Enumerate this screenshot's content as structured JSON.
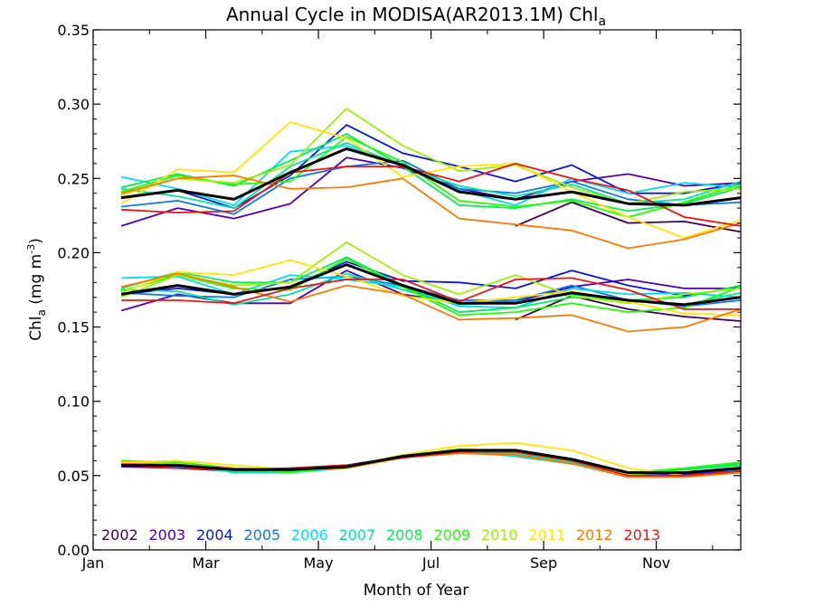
{
  "chart_data": {
    "type": "line",
    "title": "Annual Cycle in MODISA(AR2013.1M) Chl",
    "title_subscript": "a",
    "xlabel": "Month of Year",
    "ylabel_main": "Chl",
    "ylabel_sub": "a",
    "ylabel_units": " (mg m",
    "ylabel_exp": "-3",
    "ylabel_close": ")",
    "xlim": [
      1,
      12.5
    ],
    "ylim": [
      0,
      0.35
    ],
    "x_ticks": [
      {
        "value": 1,
        "label": "Jan"
      },
      {
        "value": 3,
        "label": "Mar"
      },
      {
        "value": 5,
        "label": "May"
      },
      {
        "value": 7,
        "label": "Jul"
      },
      {
        "value": 9,
        "label": "Sep"
      },
      {
        "value": 11,
        "label": "Nov"
      }
    ],
    "y_ticks": [
      {
        "value": 0.0,
        "label": "0.00"
      },
      {
        "value": 0.05,
        "label": "0.05"
      },
      {
        "value": 0.1,
        "label": "0.10"
      },
      {
        "value": 0.15,
        "label": "0.15"
      },
      {
        "value": 0.2,
        "label": "0.20"
      },
      {
        "value": 0.25,
        "label": "0.25"
      },
      {
        "value": 0.3,
        "label": "0.30"
      },
      {
        "value": 0.35,
        "label": "0.35"
      }
    ],
    "x": [
      1.5,
      2.5,
      3.5,
      4.5,
      5.5,
      6.5,
      7.5,
      8.5,
      9.5,
      10.5,
      11.5,
      12.5
    ],
    "grid": false,
    "legend_position": "bottom-left",
    "series": [
      {
        "name": "2002",
        "color": "#3c0050",
        "upper": [
          null,
          null,
          null,
          null,
          null,
          null,
          null,
          0.218,
          0.234,
          0.22,
          0.221,
          0.214
        ],
        "middle": [
          null,
          null,
          null,
          null,
          null,
          null,
          null,
          0.155,
          0.171,
          0.162,
          0.157,
          0.154
        ],
        "lower": [
          null,
          null,
          null,
          null,
          null,
          null,
          null,
          0.063,
          0.058,
          0.051,
          0.052,
          0.053
        ]
      },
      {
        "name": "2003",
        "color": "#5000b4",
        "upper": [
          0.218,
          0.23,
          0.223,
          0.233,
          0.264,
          0.257,
          0.243,
          0.236,
          0.248,
          0.253,
          0.245,
          0.247
        ],
        "middle": [
          0.161,
          0.172,
          0.166,
          0.166,
          0.188,
          0.172,
          0.166,
          0.167,
          0.177,
          0.182,
          0.176,
          0.176
        ],
        "lower": [
          0.056,
          0.055,
          0.053,
          0.053,
          0.056,
          0.062,
          0.066,
          0.065,
          0.06,
          0.052,
          0.052,
          0.054
        ]
      },
      {
        "name": "2004",
        "color": "#0a14e6",
        "upper": [
          0.237,
          0.242,
          0.23,
          0.252,
          0.286,
          0.267,
          0.258,
          0.248,
          0.259,
          0.24,
          0.24,
          0.247
        ],
        "middle": [
          0.172,
          0.176,
          0.172,
          0.177,
          0.194,
          0.181,
          0.18,
          0.176,
          0.188,
          0.178,
          0.171,
          0.177
        ],
        "lower": [
          0.058,
          0.055,
          0.054,
          0.055,
          0.057,
          0.063,
          0.067,
          0.066,
          0.059,
          0.051,
          0.051,
          0.054
        ]
      },
      {
        "name": "2005",
        "color": "#0a78f0",
        "upper": [
          0.231,
          0.235,
          0.226,
          0.25,
          0.258,
          0.262,
          0.243,
          0.24,
          0.248,
          0.236,
          0.232,
          0.234
        ],
        "middle": [
          0.173,
          0.171,
          0.17,
          0.182,
          0.184,
          0.178,
          0.168,
          0.168,
          0.178,
          0.168,
          0.164,
          0.168
        ],
        "lower": [
          0.057,
          0.056,
          0.053,
          0.054,
          0.056,
          0.063,
          0.066,
          0.064,
          0.059,
          0.051,
          0.052,
          0.054
        ]
      },
      {
        "name": "2006",
        "color": "#00dcf0",
        "upper": [
          0.251,
          0.243,
          0.232,
          0.268,
          0.272,
          0.258,
          0.242,
          0.232,
          0.25,
          0.24,
          0.247,
          0.244
        ],
        "middle": [
          0.183,
          0.184,
          0.172,
          0.185,
          0.182,
          0.177,
          0.164,
          0.163,
          0.176,
          0.172,
          0.173,
          0.17
        ],
        "lower": [
          0.058,
          0.057,
          0.053,
          0.052,
          0.055,
          0.063,
          0.066,
          0.063,
          0.058,
          0.051,
          0.052,
          0.055
        ]
      },
      {
        "name": "2007",
        "color": "#00e6a0",
        "upper": [
          0.243,
          0.238,
          0.23,
          0.258,
          0.274,
          0.258,
          0.245,
          0.238,
          0.246,
          0.233,
          0.236,
          0.248
        ],
        "middle": [
          0.175,
          0.174,
          0.165,
          0.172,
          0.186,
          0.175,
          0.165,
          0.167,
          0.172,
          0.168,
          0.165,
          0.173
        ],
        "lower": [
          0.057,
          0.058,
          0.052,
          0.052,
          0.056,
          0.062,
          0.066,
          0.065,
          0.059,
          0.052,
          0.054,
          0.057
        ]
      },
      {
        "name": "2008",
        "color": "#00f050",
        "upper": [
          0.244,
          0.253,
          0.245,
          0.262,
          0.28,
          0.258,
          0.232,
          0.23,
          0.236,
          0.228,
          0.233,
          0.244
        ],
        "middle": [
          0.176,
          0.187,
          0.18,
          0.18,
          0.197,
          0.178,
          0.16,
          0.163,
          0.17,
          0.168,
          0.17,
          0.178
        ],
        "lower": [
          0.06,
          0.058,
          0.054,
          0.053,
          0.055,
          0.063,
          0.066,
          0.067,
          0.06,
          0.052,
          0.054,
          0.058
        ]
      },
      {
        "name": "2009",
        "color": "#1eff00",
        "upper": [
          0.241,
          0.252,
          0.246,
          0.248,
          0.278,
          0.261,
          0.235,
          0.231,
          0.235,
          0.224,
          0.234,
          0.246
        ],
        "middle": [
          0.174,
          0.185,
          0.176,
          0.175,
          0.196,
          0.177,
          0.158,
          0.16,
          0.166,
          0.16,
          0.163,
          0.177
        ],
        "lower": [
          0.06,
          0.059,
          0.055,
          0.052,
          0.056,
          0.064,
          0.067,
          0.067,
          0.06,
          0.052,
          0.055,
          0.059
        ]
      },
      {
        "name": "2010",
        "color": "#a0f000",
        "upper": [
          0.239,
          0.25,
          0.247,
          0.259,
          0.297,
          0.272,
          0.255,
          0.259,
          0.244,
          0.233,
          0.241,
          0.243
        ],
        "middle": [
          0.17,
          0.185,
          0.178,
          0.18,
          0.207,
          0.185,
          0.172,
          0.185,
          0.171,
          0.166,
          0.172,
          0.176
        ],
        "lower": [
          0.059,
          0.058,
          0.054,
          0.054,
          0.056,
          0.063,
          0.068,
          0.066,
          0.06,
          0.051,
          0.052,
          0.056
        ]
      },
      {
        "name": "2011",
        "color": "#ffe600",
        "upper": [
          0.233,
          0.256,
          0.254,
          0.288,
          0.277,
          0.251,
          0.258,
          0.26,
          0.241,
          0.224,
          0.21,
          0.222
        ],
        "middle": [
          0.173,
          0.187,
          0.185,
          0.195,
          0.184,
          0.171,
          0.166,
          0.17,
          0.174,
          0.167,
          0.159,
          0.158
        ],
        "lower": [
          0.059,
          0.06,
          0.057,
          0.054,
          0.056,
          0.064,
          0.07,
          0.072,
          0.067,
          0.055,
          0.05,
          0.052
        ]
      },
      {
        "name": "2012",
        "color": "#ff7800",
        "upper": [
          0.24,
          0.25,
          0.252,
          0.243,
          0.244,
          0.25,
          0.223,
          0.219,
          0.215,
          0.203,
          0.209,
          0.22
        ],
        "middle": [
          0.177,
          0.186,
          0.177,
          0.167,
          0.178,
          0.172,
          0.155,
          0.156,
          0.158,
          0.147,
          0.15,
          0.162
        ],
        "lower": [
          0.058,
          0.057,
          0.055,
          0.054,
          0.055,
          0.062,
          0.065,
          0.064,
          0.058,
          0.049,
          0.049,
          0.052
        ]
      },
      {
        "name": "2013",
        "color": "#f01414",
        "upper": [
          0.229,
          0.227,
          0.228,
          0.254,
          0.258,
          0.258,
          0.248,
          0.26,
          0.25,
          0.242,
          0.224,
          0.218
        ],
        "middle": [
          0.168,
          0.168,
          0.166,
          0.176,
          0.182,
          0.182,
          0.167,
          0.182,
          0.183,
          0.175,
          0.162,
          0.162
        ],
        "lower": [
          0.057,
          0.055,
          0.054,
          0.055,
          0.057,
          0.062,
          0.066,
          0.066,
          0.06,
          0.05,
          0.05,
          0.053
        ]
      }
    ],
    "mean": {
      "color": "#000000",
      "upper": [
        0.237,
        0.242,
        0.236,
        0.254,
        0.27,
        0.259,
        0.241,
        0.236,
        0.241,
        0.233,
        0.232,
        0.237
      ],
      "middle": [
        0.172,
        0.178,
        0.172,
        0.177,
        0.192,
        0.178,
        0.166,
        0.166,
        0.173,
        0.168,
        0.165,
        0.17
      ],
      "lower": [
        0.057,
        0.057,
        0.054,
        0.054,
        0.056,
        0.063,
        0.067,
        0.067,
        0.061,
        0.052,
        0.052,
        0.055
      ]
    }
  }
}
